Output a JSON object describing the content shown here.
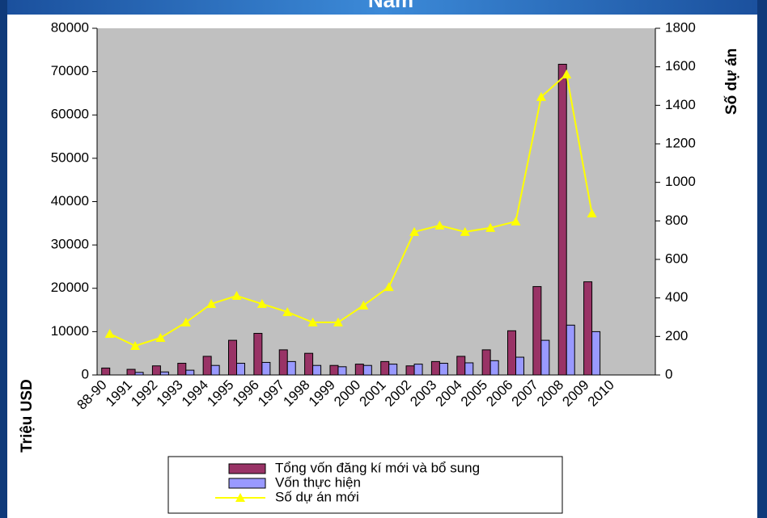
{
  "chart_data": {
    "type": "bar",
    "title": "Nam",
    "categories": [
      "88-90",
      "1991",
      "1992",
      "1993",
      "1994",
      "1995",
      "1996",
      "1997",
      "1998",
      "1999",
      "2000",
      "2001",
      "2002",
      "2003",
      "2004",
      "2005",
      "2006",
      "2007",
      "2008",
      "2009",
      "2010"
    ],
    "series": [
      {
        "name": "Tổng vốn đăng kí mới và bổ sung",
        "color": "#993366",
        "values": [
          1600,
          1300,
          2100,
          2700,
          4300,
          8000,
          9600,
          5800,
          5000,
          2200,
          2500,
          3100,
          2100,
          3100,
          4300,
          5800,
          10200,
          20400,
          71700,
          21500,
          null
        ]
      },
      {
        "name": "Vốn thực hiện",
        "color": "#9999ff",
        "values": [
          null,
          600,
          700,
          1100,
          2200,
          2700,
          2900,
          3100,
          2200,
          1900,
          2200,
          2500,
          2500,
          2700,
          2800,
          3300,
          4100,
          8000,
          11500,
          10000,
          null
        ]
      },
      {
        "name": "Số dự án mới",
        "color": "#ffff00",
        "type": "line",
        "axis": "y2",
        "values": [
          214,
          151,
          193,
          273,
          369,
          411,
          369,
          327,
          273,
          273,
          361,
          457,
          743,
          776,
          743,
          764,
          797,
          1444,
          1561,
          839,
          null
        ]
      }
    ],
    "ylabel": "Triệu  USD",
    "y2label": "Số dự án",
    "ylim": [
      0,
      80000
    ],
    "yticks": [
      0,
      10000,
      20000,
      30000,
      40000,
      50000,
      60000,
      70000,
      80000
    ],
    "y2lim": [
      0,
      1800
    ],
    "y2ticks": [
      0,
      200,
      400,
      600,
      800,
      1000,
      1200,
      1400,
      1600,
      1800
    ],
    "legend": "bottom",
    "plot_background": "#c0c0c0"
  }
}
